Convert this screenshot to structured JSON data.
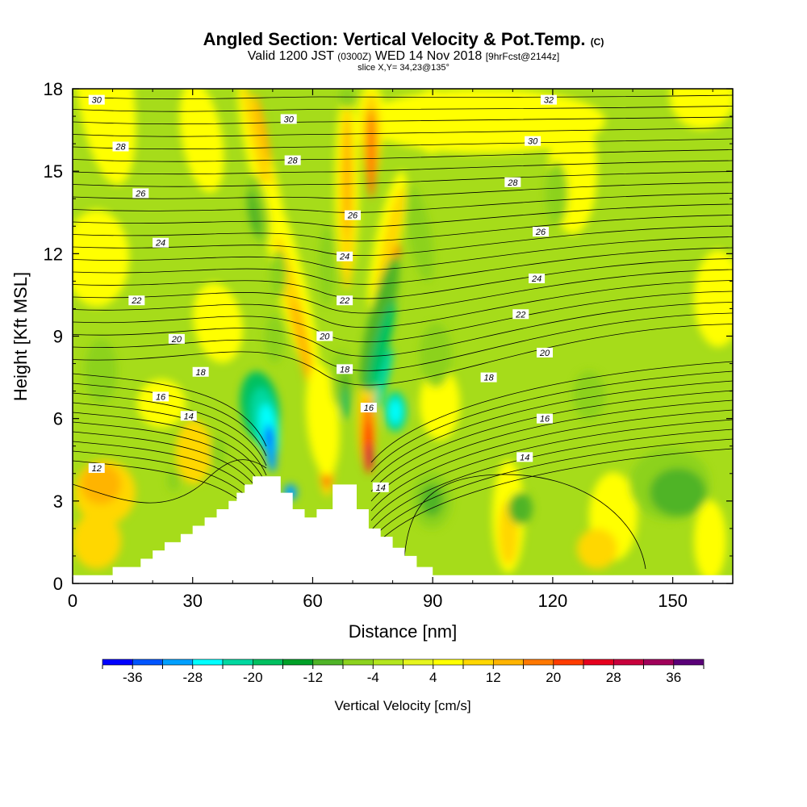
{
  "title": {
    "main": "Angled Section: Vertical Velocity & Pot.Temp.",
    "main_suffix": "(C)",
    "valid_prefix": "Valid 1200 JST",
    "valid_zulu": "(0300Z)",
    "valid_date": "WED 14 Nov 2018",
    "valid_fcst": "[9hrFcst@2144z]",
    "slice": "slice X,Y= 34,23@135°"
  },
  "chart_data": {
    "type": "heatmap",
    "xlabel": "Distance [nm]",
    "ylabel": "Height [Kft MSL]",
    "xlim": [
      0,
      165
    ],
    "ylim": [
      0,
      18
    ],
    "x_ticks": [
      "0",
      "30",
      "60",
      "90",
      "120",
      "150"
    ],
    "y_ticks": [
      "0",
      "3",
      "6",
      "9",
      "12",
      "15",
      "18"
    ],
    "colorbar": {
      "label": "Vertical Velocity [cm/s]",
      "tick_labels": [
        "-36",
        "-28",
        "-20",
        "-12",
        "-4",
        "4",
        "12",
        "20",
        "28",
        "36"
      ],
      "bins": [
        -40,
        -36,
        -32,
        -28,
        -24,
        -20,
        -16,
        -12,
        -8,
        -4,
        0,
        4,
        8,
        12,
        16,
        20,
        24,
        28,
        32,
        36,
        40
      ],
      "colors": [
        "#0000ff",
        "#0055ff",
        "#00a0ff",
        "#00ffff",
        "#00d8a0",
        "#00c060",
        "#00a028",
        "#50b428",
        "#8cd21e",
        "#b4e61e",
        "#e6f51e",
        "#ffff00",
        "#ffd700",
        "#ffb400",
        "#ff7800",
        "#ff3c00",
        "#e6001e",
        "#c8003c",
        "#a0005a",
        "#5a0078"
      ]
    },
    "terrain": [
      [
        0,
        0.3
      ],
      [
        10,
        0.3
      ],
      [
        10,
        0.6
      ],
      [
        17,
        0.6
      ],
      [
        17,
        0.9
      ],
      [
        20,
        0.9
      ],
      [
        20,
        1.2
      ],
      [
        23,
        1.2
      ],
      [
        23,
        1.5
      ],
      [
        27,
        1.5
      ],
      [
        27,
        1.8
      ],
      [
        30,
        1.8
      ],
      [
        30,
        2.1
      ],
      [
        33,
        2.1
      ],
      [
        33,
        2.4
      ],
      [
        36,
        2.4
      ],
      [
        36,
        2.7
      ],
      [
        39,
        2.7
      ],
      [
        39,
        3
      ],
      [
        41,
        3
      ],
      [
        41,
        3.3
      ],
      [
        43,
        3.3
      ],
      [
        43,
        3.6
      ],
      [
        45,
        3.6
      ],
      [
        45,
        3.9
      ],
      [
        52,
        3.9
      ],
      [
        52,
        3.3
      ],
      [
        55,
        3.3
      ],
      [
        55,
        2.7
      ],
      [
        58,
        2.7
      ],
      [
        58,
        2.4
      ],
      [
        61,
        2.4
      ],
      [
        61,
        2.7
      ],
      [
        65,
        2.7
      ],
      [
        65,
        3.6
      ],
      [
        71,
        3.6
      ],
      [
        71,
        2.7
      ],
      [
        74,
        2.7
      ],
      [
        74,
        2
      ],
      [
        77,
        2
      ],
      [
        77,
        1.7
      ],
      [
        80,
        1.7
      ],
      [
        80,
        1.3
      ],
      [
        83,
        1.3
      ],
      [
        83,
        1
      ],
      [
        86,
        1
      ],
      [
        86,
        0.6
      ],
      [
        90,
        0.6
      ],
      [
        90,
        0.3
      ],
      [
        165,
        0.3
      ]
    ],
    "theta_contour_labels": [
      {
        "x": 6,
        "y": 17.6,
        "text": "30"
      },
      {
        "x": 54,
        "y": 16.9,
        "text": "30"
      },
      {
        "x": 119,
        "y": 17.6,
        "text": "32"
      },
      {
        "x": 12,
        "y": 15.9,
        "text": "28"
      },
      {
        "x": 55,
        "y": 15.4,
        "text": "28"
      },
      {
        "x": 115,
        "y": 16.1,
        "text": "30"
      },
      {
        "x": 17,
        "y": 14.2,
        "text": "26"
      },
      {
        "x": 70,
        "y": 13.4,
        "text": "26"
      },
      {
        "x": 110,
        "y": 14.6,
        "text": "28"
      },
      {
        "x": 22,
        "y": 12.4,
        "text": "24"
      },
      {
        "x": 68,
        "y": 11.9,
        "text": "24"
      },
      {
        "x": 117,
        "y": 12.8,
        "text": "26"
      },
      {
        "x": 16,
        "y": 10.3,
        "text": "22"
      },
      {
        "x": 68,
        "y": 10.3,
        "text": "22"
      },
      {
        "x": 116,
        "y": 11.1,
        "text": "24"
      },
      {
        "x": 26,
        "y": 8.9,
        "text": "20"
      },
      {
        "x": 63,
        "y": 9.0,
        "text": "20"
      },
      {
        "x": 112,
        "y": 9.8,
        "text": "22"
      },
      {
        "x": 32,
        "y": 7.7,
        "text": "18"
      },
      {
        "x": 68,
        "y": 7.8,
        "text": "18"
      },
      {
        "x": 118,
        "y": 8.4,
        "text": "20"
      },
      {
        "x": 22,
        "y": 6.8,
        "text": "16"
      },
      {
        "x": 74,
        "y": 6.4,
        "text": "16"
      },
      {
        "x": 104,
        "y": 7.5,
        "text": "18"
      },
      {
        "x": 29,
        "y": 6.1,
        "text": "14"
      },
      {
        "x": 118,
        "y": 6.0,
        "text": "16"
      },
      {
        "x": 6,
        "y": 4.2,
        "text": "12"
      },
      {
        "x": 113,
        "y": 4.6,
        "text": "14"
      },
      {
        "x": 77,
        "y": 3.5,
        "text": "14"
      }
    ]
  }
}
